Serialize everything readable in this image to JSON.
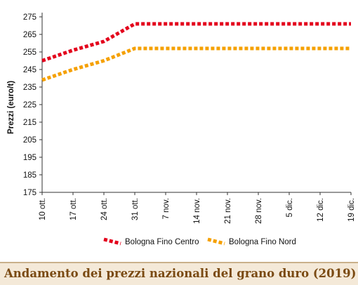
{
  "chart_data": {
    "type": "line",
    "categories": [
      "10 ott.",
      "17 ott.",
      "24 ott.",
      "31 ott.",
      "7 nov.",
      "14 nov.",
      "21 nov.",
      "28 nov.",
      "5 dic.",
      "12 dic.",
      "19 dic."
    ],
    "ylabel": "Prezzi (euro/t)",
    "xlabel": "",
    "ylim": [
      175,
      275
    ],
    "yticks": [
      175,
      185,
      195,
      205,
      215,
      225,
      235,
      245,
      255,
      265,
      275
    ],
    "grid": false,
    "legend_position": "bottom",
    "series": [
      {
        "name": "Bologna Fino Centro",
        "color": "#e3001b",
        "values": [
          250,
          256,
          261,
          271,
          271,
          271,
          271,
          271,
          271,
          271,
          271
        ]
      },
      {
        "name": "Bologna Fino Nord",
        "color": "#f5a000",
        "values": [
          239,
          245,
          250,
          257,
          257,
          257,
          257,
          257,
          257,
          257,
          257
        ]
      }
    ]
  },
  "caption": "Andamento dei prezzi nazionali del grano duro (2019)"
}
